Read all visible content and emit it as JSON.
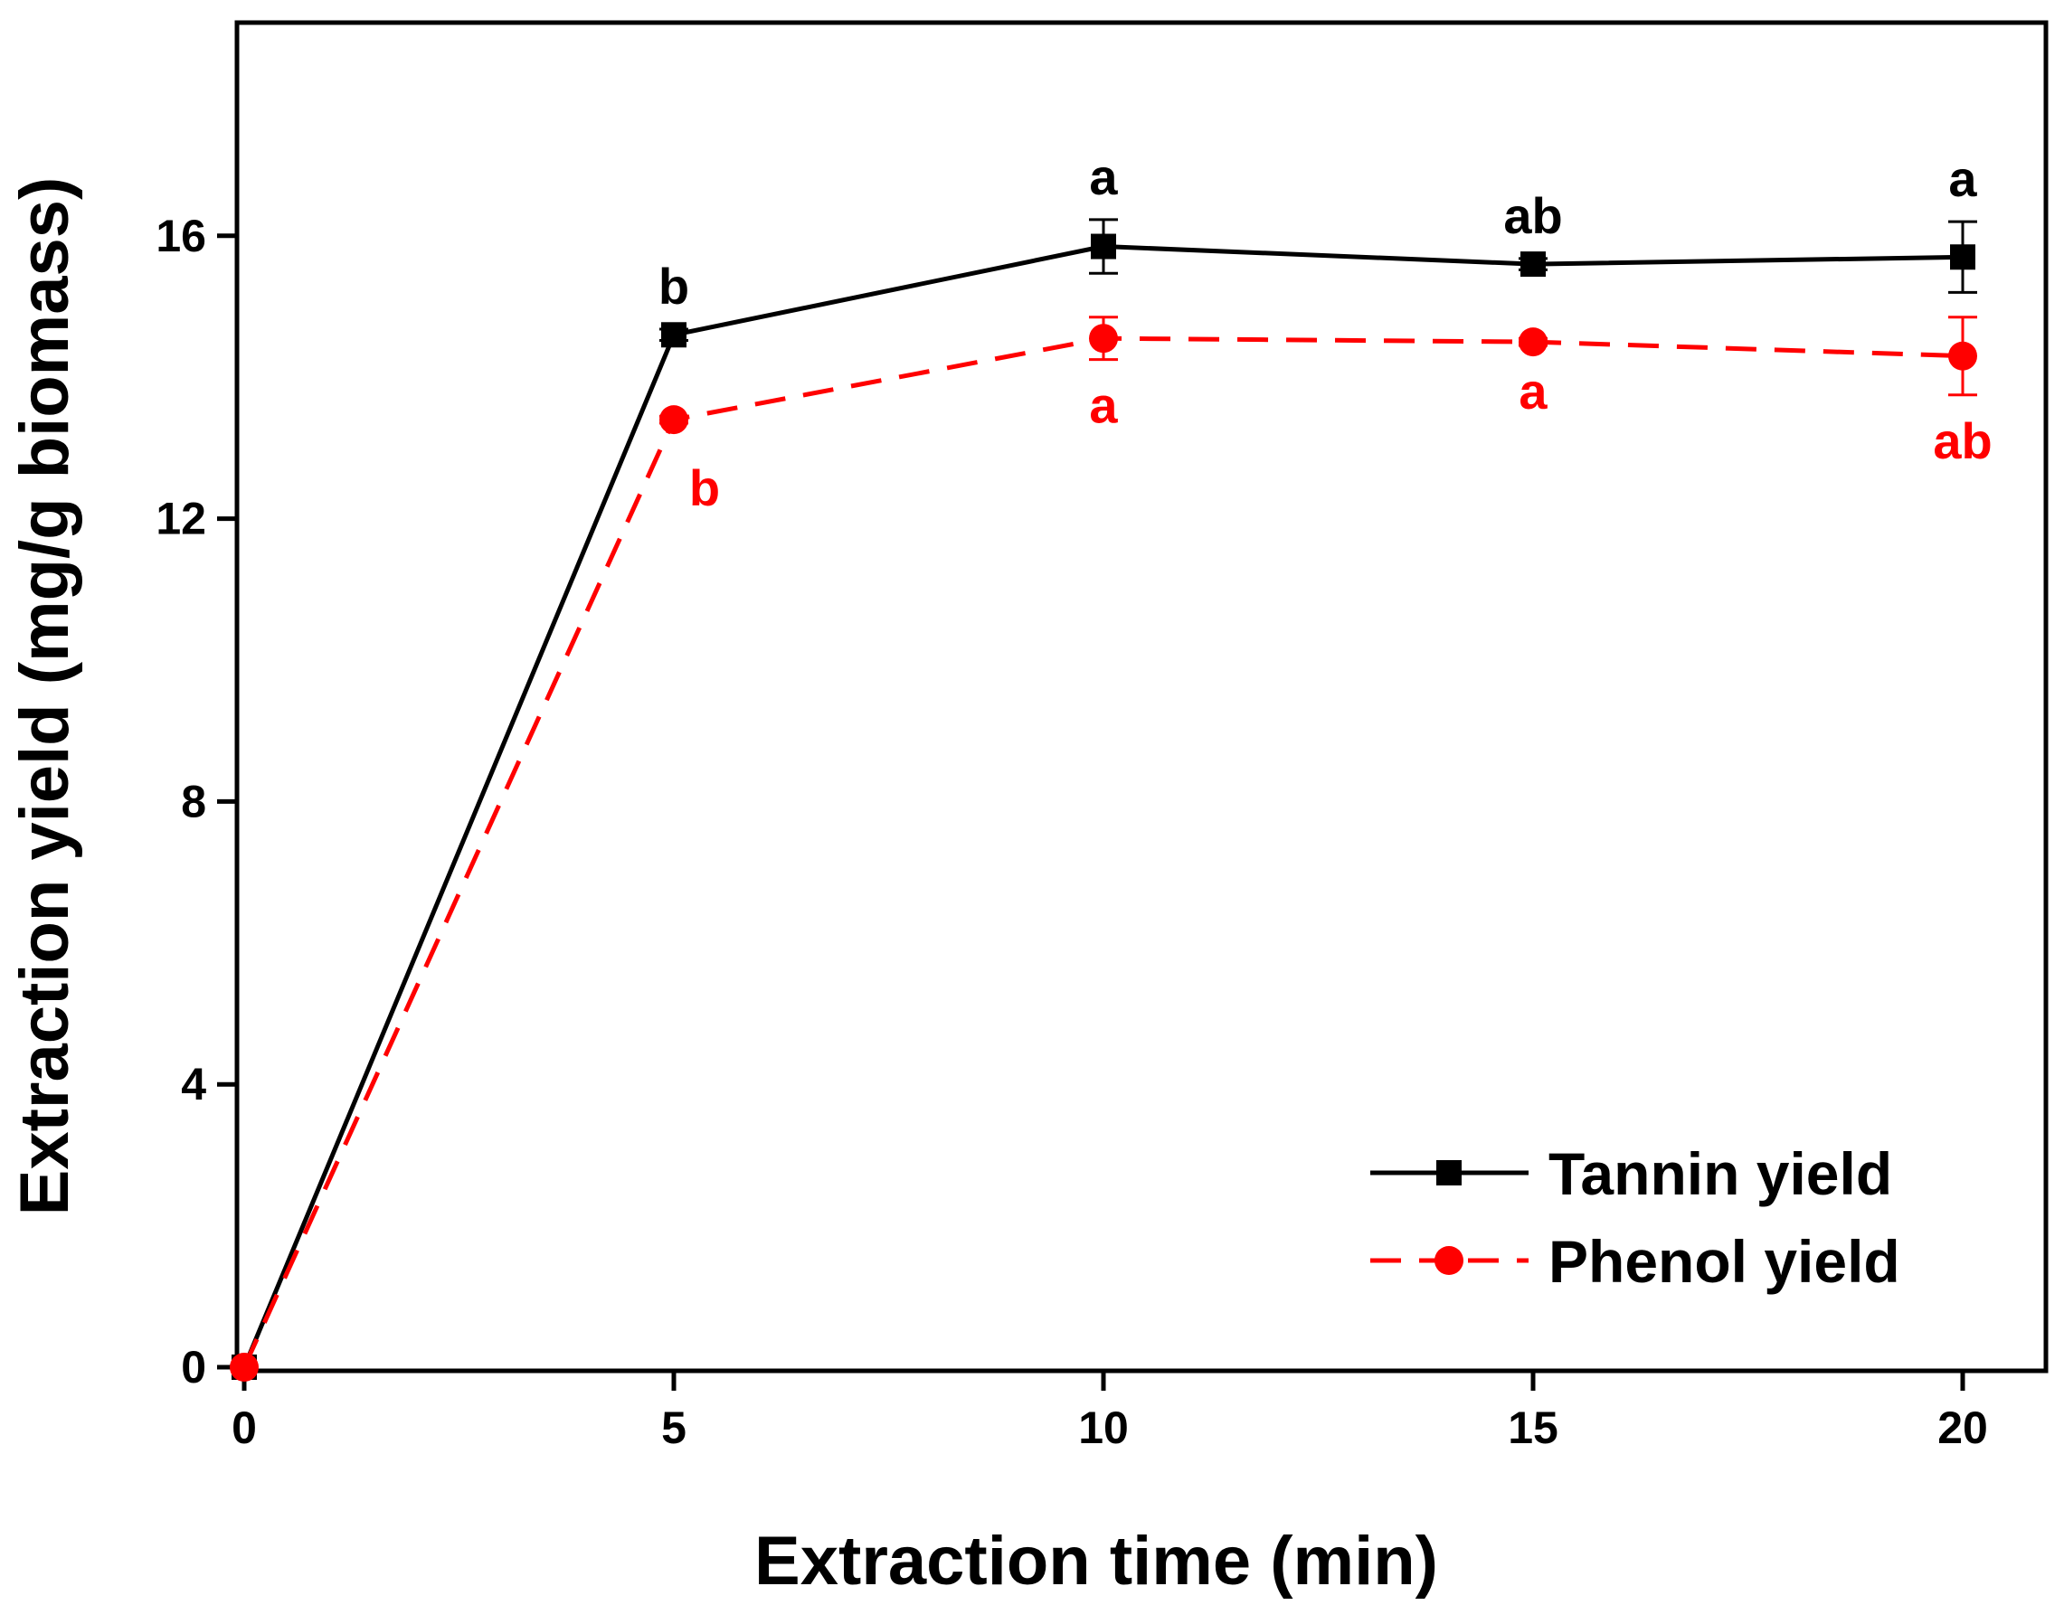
{
  "chart_data": {
    "type": "line",
    "xlabel": "Extraction time (min)",
    "ylabel": "Extraction yield (mg/g biomass)",
    "xlim": [
      0,
      21
    ],
    "ylim": [
      0,
      19
    ],
    "xticks": [
      0,
      5,
      10,
      15,
      20
    ],
    "yticks": [
      0,
      4,
      8,
      12,
      16
    ],
    "x": [
      0,
      5,
      10,
      15,
      20
    ],
    "grid": false,
    "legend_position": "bottom-right",
    "series": [
      {
        "name": "Tannin yield",
        "color": "#000000",
        "line_style": "solid",
        "marker": "square",
        "values": [
          0,
          14.6,
          15.85,
          15.6,
          15.7
        ],
        "errors": [
          0,
          0.08,
          0.38,
          0.08,
          0.5
        ],
        "significance": [
          "",
          "b",
          "a",
          "ab",
          "a"
        ],
        "label_side": "above"
      },
      {
        "name": "Phenol yield",
        "color": "#ff0000",
        "line_style": "dashed",
        "marker": "circle",
        "values": [
          0,
          13.4,
          14.55,
          14.5,
          14.3
        ],
        "errors": [
          0,
          0.05,
          0.3,
          0.05,
          0.55
        ],
        "significance": [
          "",
          "b",
          "a",
          "a",
          "ab"
        ],
        "label_side": "below"
      }
    ]
  }
}
